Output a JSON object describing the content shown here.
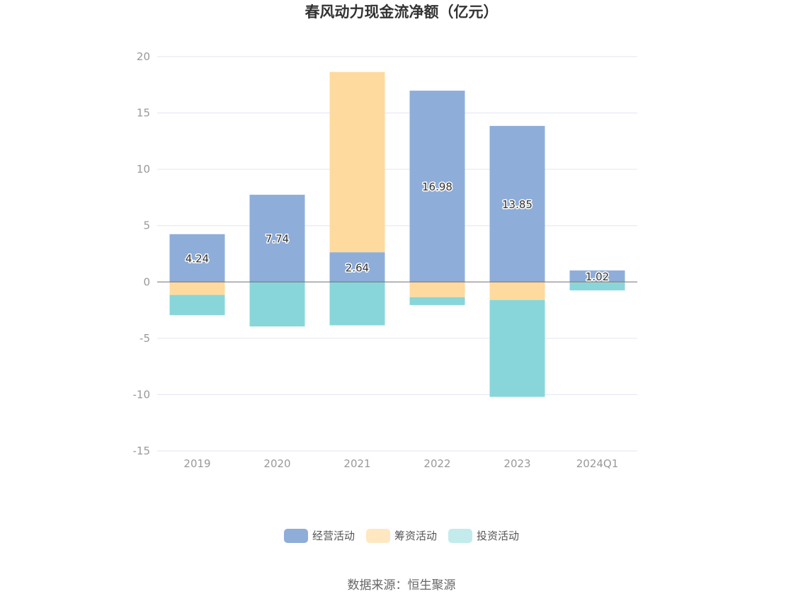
{
  "chart_data": {
    "type": "bar",
    "stacked": true,
    "title": "春风动力现金流净额（亿元）",
    "categories": [
      "2019",
      "2020",
      "2021",
      "2022",
      "2023",
      "2024Q1"
    ],
    "ylim": [
      -15,
      20
    ],
    "yticks": [
      -15,
      -10,
      -5,
      0,
      5,
      10,
      15,
      20
    ],
    "grid": true,
    "legend_position": "bottom",
    "series": [
      {
        "name": "经营活动",
        "color": "#8eadd9",
        "values": [
          4.24,
          7.74,
          2.64,
          16.98,
          13.85,
          1.02
        ]
      },
      {
        "name": "筹资活动",
        "color": "#ffda9e",
        "values": [
          -1.15,
          0.0,
          16.0,
          -1.35,
          -1.6,
          -0.05
        ]
      },
      {
        "name": "投资活动",
        "color": "#88d6da",
        "values": [
          -1.8,
          -3.95,
          -3.85,
          -0.7,
          -8.6,
          -0.7
        ]
      }
    ],
    "data_labels": [
      "4.24",
      "7.74",
      "2.64",
      "16.98",
      "13.85",
      "1.02"
    ]
  },
  "legend": [
    {
      "label": "经营活动",
      "color": "#8eadd9"
    },
    {
      "label": "筹资活动",
      "color": "#ffe7c2"
    },
    {
      "label": "投资活动",
      "color": "#c3ebec"
    }
  ],
  "source_text": "数据来源：恒生聚源"
}
